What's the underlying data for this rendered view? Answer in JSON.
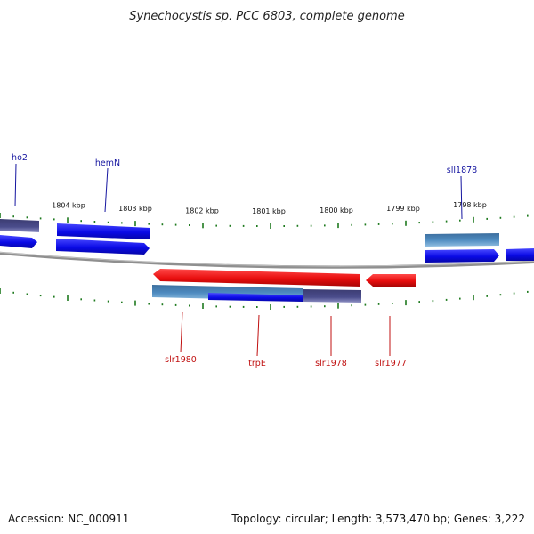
{
  "title": "Synechocystis sp. PCC 6803, complete genome",
  "footer": {
    "accession": "Accession: NC_000911",
    "summary": "Topology: circular; Length: 3,573,470 bp; Genes: 3,222"
  },
  "colors": {
    "forward_strand": "#1a1aee",
    "reverse_strand": "#e01010",
    "steelblue": "#4a82b6",
    "slate": "#4a4c8a",
    "tick": "#1f7a1f",
    "backbone": "#8f8f8f",
    "label_forward": "#1515a0",
    "label_reverse": "#c01010"
  },
  "scale_ticks": [
    "1804 kbp",
    "1803 kbp",
    "1802 kbp",
    "1801 kbp",
    "1800 kbp",
    "1799 kbp",
    "1798 kbp"
  ],
  "genes": {
    "forward": [
      {
        "name": "ho2"
      },
      {
        "name": "hemN"
      },
      {
        "name": "sll1878"
      }
    ],
    "reverse": [
      {
        "name": "slr1980"
      },
      {
        "name": "trpE"
      },
      {
        "name": "slr1978"
      },
      {
        "name": "slr1977"
      }
    ]
  }
}
